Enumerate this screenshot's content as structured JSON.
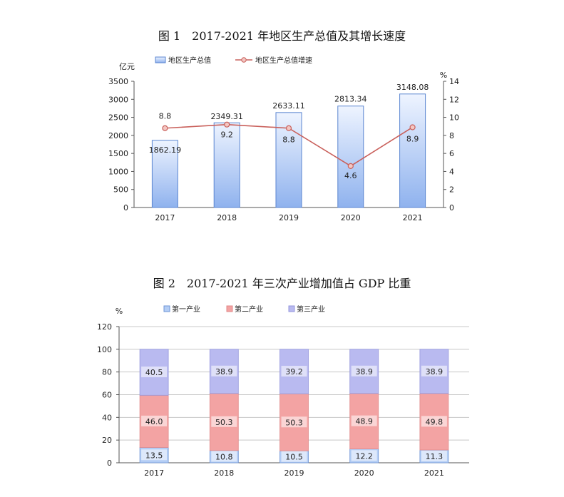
{
  "figure1": {
    "title": "图 1　2017-2021 年地区生产总值及其增长速度",
    "left_unit": "亿元",
    "right_unit": "%",
    "legend": [
      "地区生产总值",
      "地区生产总值增速"
    ],
    "colors": {
      "bar_top": "#eef4ff",
      "bar_bottom": "#8fb2ee",
      "bar_stroke": "#5b86d1",
      "line": "#c9605b",
      "marker_fill": "#f3c7c3"
    }
  },
  "figure2": {
    "title": "图 2　2017-2021 年三次产业增加值占 GDP 比重",
    "unit": "%",
    "legend": [
      "第一产业",
      "第二产业",
      "第三产业"
    ],
    "colors": {
      "primary": "#b3cdf5",
      "secondary": "#f3a3a3",
      "tertiary": "#b9baf0",
      "primary_stroke": "#6f95d6",
      "secondary_stroke": "#e08a8a",
      "tertiary_stroke": "#9597dc"
    }
  },
  "chart_data": [
    {
      "type": "bar",
      "title": "图 1　2017-2021 年地区生产总值及其增长速度",
      "categories": [
        "2017",
        "2018",
        "2019",
        "2020",
        "2021"
      ],
      "series": [
        {
          "name": "地区生产总值",
          "type": "bar",
          "axis": "left",
          "values": [
            1862.19,
            2349.31,
            2633.11,
            2813.34,
            3148.08
          ],
          "labels": [
            "1862.19",
            "2349.31",
            "2633.11",
            "2813.34",
            "3148.08"
          ]
        },
        {
          "name": "地区生产总值增速",
          "type": "line",
          "axis": "right",
          "values": [
            8.8,
            9.2,
            8.8,
            4.6,
            8.9
          ],
          "labels": [
            "8.8",
            "9.2",
            "8.8",
            "4.6",
            "8.9"
          ]
        }
      ],
      "ylabel": "亿元",
      "y2label": "%",
      "ylim": [
        0,
        3500
      ],
      "y2lim": [
        0,
        14
      ],
      "yticks": [
        0,
        500,
        1000,
        1500,
        2000,
        2500,
        3000,
        3500
      ],
      "y2ticks": [
        0,
        2,
        4,
        6,
        8,
        10,
        12,
        14
      ],
      "legend_position": "top",
      "grid": false
    },
    {
      "type": "bar",
      "stacked": true,
      "title": "图 2　2017-2021 年三次产业增加值占 GDP 比重",
      "categories": [
        "2017",
        "2018",
        "2019",
        "2020",
        "2021"
      ],
      "series": [
        {
          "name": "第一产业",
          "values": [
            13.5,
            10.8,
            10.5,
            12.2,
            11.3
          ],
          "labels": [
            "13.5",
            "10.8",
            "10.5",
            "12.2",
            "11.3"
          ]
        },
        {
          "name": "第二产业",
          "values": [
            46.0,
            50.3,
            50.3,
            48.9,
            49.8
          ],
          "labels": [
            "46.0",
            "50.3",
            "50.3",
            "48.9",
            "49.8"
          ]
        },
        {
          "name": "第三产业",
          "values": [
            40.5,
            38.9,
            39.2,
            38.9,
            38.9
          ],
          "labels": [
            "40.5",
            "38.9",
            "39.2",
            "38.9",
            "38.9"
          ]
        }
      ],
      "ylabel": "%",
      "ylim": [
        0,
        120
      ],
      "yticks": [
        0,
        20,
        40,
        60,
        80,
        100,
        120
      ],
      "legend_position": "top",
      "grid": true
    }
  ]
}
